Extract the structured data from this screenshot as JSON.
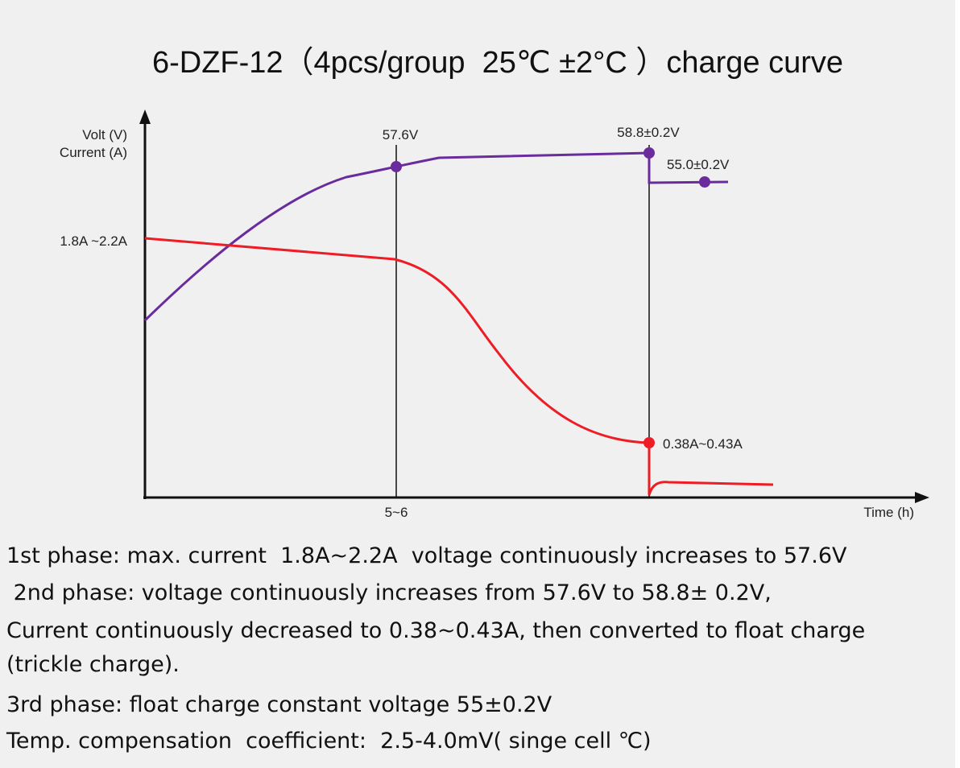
{
  "chart_data": {
    "type": "line",
    "title": "6-DZF-12（4pcs/group  25℃ ±2°C ）charge curve",
    "y_axis_label_lines": [
      "Volt  (V)",
      "Current  (A)"
    ],
    "x_axis_label": "Time  (h)",
    "x_tick_label": "5~6",
    "grid": false,
    "series": [
      {
        "name": "voltage",
        "color": "#6a2c9c",
        "points": [
          {
            "label": "57.6V"
          },
          {
            "label": "58.8±0.2V"
          },
          {
            "label": "55.0±0.2V"
          }
        ]
      },
      {
        "name": "current",
        "color": "#ee1c24",
        "points": [
          {
            "label": "1.8A ~2.2A"
          },
          {
            "label": "0.38A~0.43A"
          }
        ]
      }
    ]
  },
  "notes": [
    "1st phase: max. current  1.8A~2.2A  voltage continuously increases to 57.6V",
    " 2nd phase: voltage continuously increases from 57.6V to 58.8± 0.2V,",
    "Current continuously decreased to 0.38~0.43A, then converted to float charge",
    "(trickle charge).",
    "3rd phase: float charge constant voltage 55±0.2V",
    "Temp. compensation  coefficient:  2.5-4.0mV( singe cell ℃)"
  ]
}
